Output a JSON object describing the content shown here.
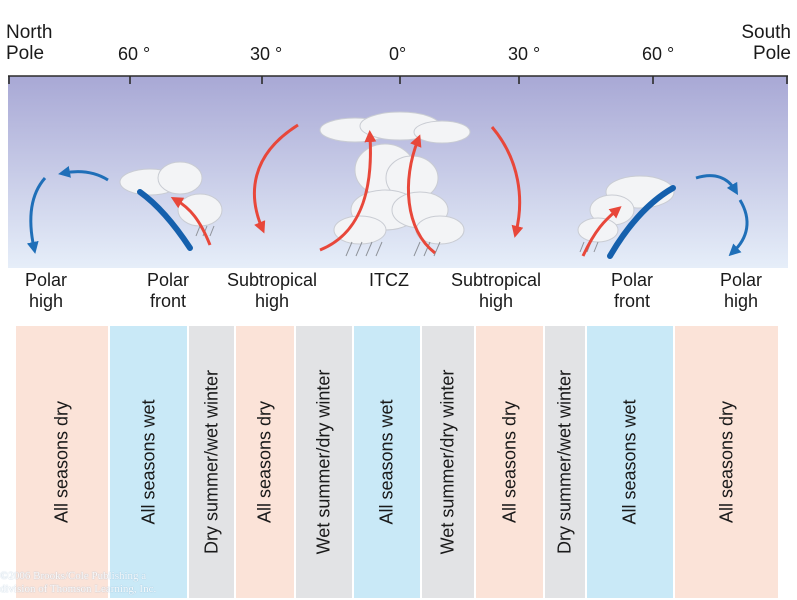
{
  "header": {
    "north_pole": [
      "North",
      "Pole"
    ],
    "south_pole": [
      "South",
      "Pole"
    ],
    "latitudes": [
      "60 °",
      "30 °",
      "0°",
      "30 °",
      "60 °"
    ]
  },
  "pressure_belts": [
    {
      "label": [
        "Polar",
        "high"
      ]
    },
    {
      "label": [
        "Polar",
        "front"
      ]
    },
    {
      "label": [
        "Subtropical",
        "high"
      ]
    },
    {
      "label": [
        "ITCZ"
      ]
    },
    {
      "label": [
        "Subtropical",
        "high"
      ]
    },
    {
      "label": [
        "Polar",
        "front"
      ]
    },
    {
      "label": [
        "Polar",
        "high"
      ]
    }
  ],
  "precipitation_zones": [
    {
      "label": "All seasons dry",
      "color": "#fbe3d8"
    },
    {
      "label": "All seasons wet",
      "color": "#c9e9f7"
    },
    {
      "label": "Dry summer/wet winter",
      "color": "#e2e3e5"
    },
    {
      "label": "All seasons dry",
      "color": "#fbe3d8"
    },
    {
      "label": "Wet summer/dry winter",
      "color": "#e2e3e5"
    },
    {
      "label": "All seasons wet",
      "color": "#c9e9f7"
    },
    {
      "label": "Wet summer/dry winter",
      "color": "#e2e3e5"
    },
    {
      "label": "All seasons dry",
      "color": "#fbe3d8"
    },
    {
      "label": "Dry summer/wet winter",
      "color": "#e2e3e5"
    },
    {
      "label": "All seasons wet",
      "color": "#c9e9f7"
    },
    {
      "label": "All seasons dry",
      "color": "#fbe3d8"
    }
  ],
  "copyright": [
    "©2006 Brooks/Cole Publishing a",
    "division of Thomson Learning, Inc."
  ],
  "colors": {
    "sky_top": "#a9a9d6",
    "sky_bottom": "#e4ecf8",
    "arrow_red": "#e8473a",
    "arrow_blue": "#1f6fb8",
    "front_blue": "#1560ad"
  }
}
